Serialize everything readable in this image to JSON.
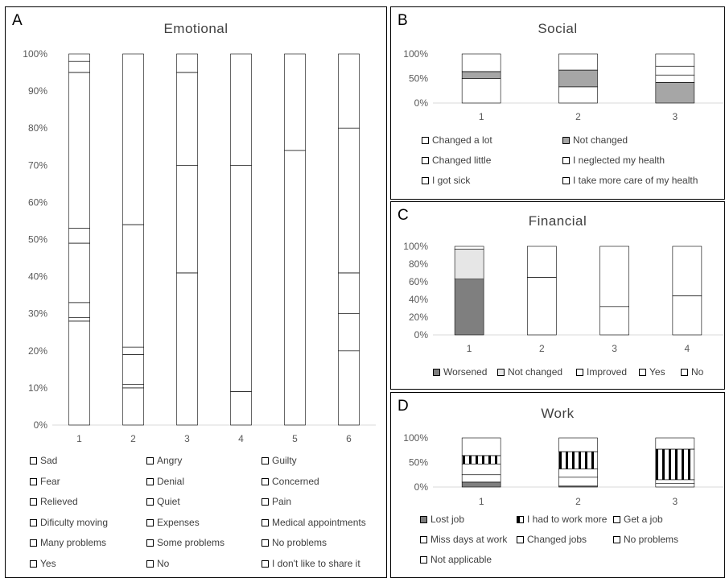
{
  "patterns": {
    "sad": "dots-diag",
    "angry": "solid-black",
    "guilty": "light-gray",
    "fear": "dense-dots",
    "denial": "black-dots",
    "concerned": "light-diag",
    "relieved": "white",
    "quiet": "vertical-lines",
    "pain": "wide-diag",
    "dificulty": "dashed-vertical",
    "expenses": "horizontal-lines",
    "medical": "light-diag-2",
    "many": "black-diamond",
    "some": "black-horizontal",
    "noproblems": "cross-diamond",
    "yes": "white-black",
    "no": "white",
    "share": "checker-black"
  },
  "panels": {
    "A": {
      "label": "A",
      "title": "Emotional",
      "chart_data": {
        "type": "bar",
        "stacked": true,
        "categories": [
          "1",
          "2",
          "3",
          "4",
          "5",
          "6"
        ],
        "ylim": [
          0,
          100
        ],
        "yticks": [
          "0%",
          "10%",
          "20%",
          "30%",
          "40%",
          "50%",
          "60%",
          "70%",
          "80%",
          "90%",
          "100%"
        ],
        "series": [
          {
            "name": "Sad",
            "key": "sad",
            "values": [
              28,
              10,
              0,
              0,
              0,
              20
            ]
          },
          {
            "name": "Angry",
            "key": "angry",
            "values": [
              1,
              1,
              0,
              0,
              0,
              0
            ]
          },
          {
            "name": "Guilty",
            "key": "guilty",
            "values": [
              4,
              0,
              0,
              0,
              0,
              0
            ]
          },
          {
            "name": "Fear",
            "key": "fear",
            "values": [
              16,
              8,
              0,
              0,
              0,
              0
            ]
          },
          {
            "name": "Denial",
            "key": "denial",
            "values": [
              4,
              2,
              0,
              0,
              0,
              0
            ]
          },
          {
            "name": "Concerned",
            "key": "concerned",
            "values": [
              42,
              33,
              0,
              0,
              0,
              10
            ]
          },
          {
            "name": "Relieved",
            "key": "relieved",
            "values": [
              3,
              0,
              0,
              0,
              0,
              0
            ]
          },
          {
            "name": "Quiet",
            "key": "quiet",
            "values": [
              0,
              0,
              0,
              9,
              0,
              0
            ]
          },
          {
            "name": "Pain",
            "key": "pain",
            "values": [
              0,
              0,
              41,
              0,
              0,
              0
            ]
          },
          {
            "name": "Dificulty moving",
            "key": "dificulty",
            "values": [
              0,
              0,
              0,
              0,
              0,
              11
            ]
          },
          {
            "name": "Expenses",
            "key": "expenses",
            "values": [
              0,
              0,
              0,
              61,
              0,
              0
            ]
          },
          {
            "name": "Medical appointments",
            "key": "medical",
            "values": [
              0,
              0,
              29,
              0,
              0,
              0
            ]
          },
          {
            "name": "Many problems",
            "key": "many",
            "values": [
              0,
              0,
              0,
              0,
              74,
              0
            ]
          },
          {
            "name": "Some problems",
            "key": "some",
            "values": [
              0,
              0,
              25,
              0,
              0,
              0
            ]
          },
          {
            "name": "No problems",
            "key": "noproblems",
            "values": [
              0,
              0,
              5,
              30,
              0,
              0
            ]
          },
          {
            "name": "Yes",
            "key": "yes",
            "values": [
              2,
              0,
              0,
              0,
              0,
              0
            ]
          },
          {
            "name": "No",
            "key": "no",
            "values": [
              0,
              46,
              0,
              0,
              0,
              39
            ]
          },
          {
            "name": "I don't like to share it",
            "key": "share",
            "values": [
              0,
              0,
              0,
              0,
              26,
              20
            ]
          }
        ]
      },
      "legend": [
        "Sad",
        "Angry",
        "Guilty",
        "Fear",
        "Denial",
        "Concerned",
        "Relieved",
        "Quiet",
        "Pain",
        "Dificulty moving",
        "Expenses",
        "Medical appointments",
        "Many problems",
        "Some problems",
        "No problems",
        "Yes",
        "No",
        "I don't like to share it"
      ]
    },
    "B": {
      "label": "B",
      "title": "Social",
      "chart_data": {
        "type": "bar",
        "stacked": true,
        "categories": [
          "1",
          "2",
          "3"
        ],
        "ylim": [
          0,
          100
        ],
        "yticks": [
          "0%",
          "50%",
          "100%"
        ],
        "series": [
          {
            "name": "Changed a lot",
            "key": "angry",
            "values": [
              50,
              33,
              0
            ]
          },
          {
            "name": "Not changed",
            "key": "guilty-dark",
            "values": [
              14,
              34,
              42
            ]
          },
          {
            "name": "Changed little",
            "key": "pain",
            "values": [
              36,
              33,
              0
            ]
          },
          {
            "name": "I neglected my health",
            "key": "pain",
            "values": [
              0,
              0,
              15
            ]
          },
          {
            "name": "I got sick",
            "key": "fear",
            "values": [
              0,
              0,
              18
            ]
          },
          {
            "name": "I take more care of my health",
            "key": "share",
            "values": [
              0,
              0,
              25
            ]
          }
        ]
      },
      "legend": [
        "Changed a lot",
        "Not changed",
        "Changed little",
        "I neglected my health",
        "I got sick",
        "I take more care of my health"
      ]
    },
    "C": {
      "label": "C",
      "title": "Financial",
      "chart_data": {
        "type": "bar",
        "stacked": true,
        "categories": [
          "1",
          "2",
          "3",
          "4"
        ],
        "ylim": [
          0,
          100
        ],
        "yticks": [
          "0%",
          "20%",
          "40%",
          "60%",
          "80%",
          "100%"
        ],
        "series": [
          {
            "name": "Worsened",
            "key": "worsened",
            "values": [
              63,
              0,
              0,
              0
            ]
          },
          {
            "name": "Not changed",
            "key": "notchanged",
            "values": [
              34,
              0,
              0,
              0
            ]
          },
          {
            "name": "Improved",
            "key": "share",
            "values": [
              3,
              0,
              0,
              0
            ]
          },
          {
            "name": "Yes",
            "key": "pain",
            "values": [
              0,
              65,
              32,
              44
            ]
          },
          {
            "name": "No",
            "key": "expenses",
            "values": [
              0,
              35,
              68,
              56
            ]
          }
        ]
      },
      "legend": [
        "Worsened",
        "Not changed",
        "Improved",
        "Yes",
        "No"
      ]
    },
    "D": {
      "label": "D",
      "title": "Work",
      "chart_data": {
        "type": "bar",
        "stacked": true,
        "categories": [
          "1",
          "2",
          "3"
        ],
        "ylim": [
          0,
          100
        ],
        "yticks": [
          "0%",
          "50%",
          "100%"
        ],
        "series": [
          {
            "name": "Lost job",
            "key": "worsened",
            "values": [
              10,
              2,
              0
            ]
          },
          {
            "name": "Miss days at work",
            "key": "pain",
            "values": [
              15,
              18,
              7
            ]
          },
          {
            "name": "Get a job",
            "key": "concerned",
            "values": [
              22,
              17,
              8
            ]
          },
          {
            "name": "Changed jobs",
            "key": "share",
            "values": [
              0,
              0,
              0
            ]
          },
          {
            "name": "I had to work more",
            "key": "angry-lines",
            "values": [
              17,
              35,
              62
            ]
          },
          {
            "name": "No problems",
            "key": "quiet",
            "values": [
              0,
              0,
              0
            ]
          },
          {
            "name": "Not applicable",
            "key": "fear",
            "values": [
              36,
              28,
              23
            ]
          }
        ]
      },
      "legend": [
        "Lost job",
        "I had to work more",
        "Get a job",
        "Miss days at work",
        "Changed jobs",
        "No problems",
        "Not applicable"
      ]
    }
  }
}
